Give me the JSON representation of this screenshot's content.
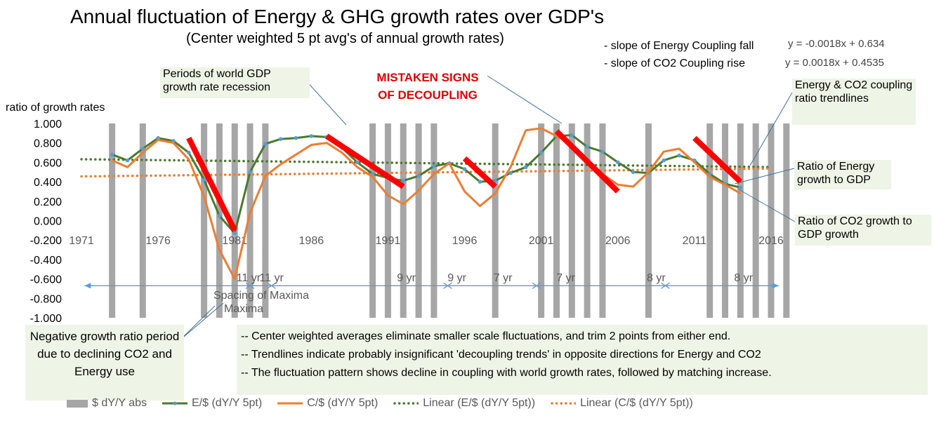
{
  "title": "Annual fluctuation of Energy & GHG growth rates over GDP's",
  "subtitle": "(Center weighted 5 pt avg's of annual growth rates)",
  "equations": [
    {
      "label": "- slope of Energy Coupling fall",
      "eq": "y = -0.0018x + 0.634"
    },
    {
      "label": "- slope of CO2 Coupling rise",
      "eq": "y = 0.0018x + 0.4535"
    }
  ],
  "annotations": {
    "recession": "Periods of world GDP growth rate recession",
    "mistaken": [
      "MISTAKEN SIGNS",
      "OF DECOUPLING"
    ],
    "trendlines": "Energy & CO2 coupling ratio trendlines",
    "ratio_energy": "Ratio of Energy growth to GDP",
    "ratio_co2": "Ratio of CO2 growth to GDP growth",
    "negative": "Negative growth ratio period  due to declining CO2 and Energy use",
    "notes": [
      "-- Center weighted averages eliminate smaller scale fluctuations, and trim 2 points from either end.",
      "-- Trendlines indicate probably insignificant 'decoupling trends' in opposite directions for Energy and CO2",
      "-- The fluctuation pattern shows decline in coupling with world growth rates, followed by matching increase."
    ]
  },
  "chart_data": {
    "type": "line",
    "ylabel": "ratio of growth rates",
    "ylim": [
      -1.0,
      1.0
    ],
    "y_ticks": [
      "1.000",
      "0.800",
      "0.600",
      "0.400",
      "0.200",
      "0.000",
      "-0.200",
      "-0.400",
      "-0.600",
      "-0.800",
      "-1.000"
    ],
    "x_ticks": [
      "1971",
      "1976",
      "1981",
      "1986",
      "1991",
      "1996",
      "2001",
      "2006",
      "2011",
      "2016"
    ],
    "xlim": [
      1971,
      2016
    ],
    "recession_years": [
      1973,
      1975,
      1979,
      1980,
      1981,
      1982,
      1983,
      1990,
      1991,
      1992,
      1993,
      1994,
      1998,
      2001,
      2002,
      2003,
      2004,
      2005,
      2008,
      2012,
      2013,
      2014,
      2015,
      2016,
      2017
    ],
    "series": [
      {
        "name": "E/$ (dY/Y 5pt)",
        "color": "#4a7a2e",
        "x": [
          1973,
          1974,
          1975,
          1976,
          1977,
          1978,
          1979,
          1980,
          1981,
          1982,
          1983,
          1984,
          1985,
          1986,
          1987,
          1988,
          1989,
          1990,
          1991,
          1992,
          1993,
          1994,
          1995,
          1996,
          1997,
          1998,
          1999,
          2000,
          2001,
          2002,
          2003,
          2004,
          2005,
          2006,
          2007,
          2008,
          2009,
          2010,
          2011,
          2012,
          2013,
          2014
        ],
        "values": [
          0.68,
          0.62,
          0.74,
          0.85,
          0.82,
          0.7,
          0.42,
          0.05,
          -0.13,
          0.5,
          0.79,
          0.84,
          0.85,
          0.87,
          0.86,
          0.75,
          0.6,
          0.48,
          0.44,
          0.41,
          0.46,
          0.56,
          0.59,
          0.53,
          0.4,
          0.41,
          0.49,
          0.55,
          0.7,
          0.87,
          0.88,
          0.76,
          0.71,
          0.6,
          0.5,
          0.49,
          0.62,
          0.67,
          0.62,
          0.48,
          0.38,
          0.34
        ]
      },
      {
        "name": "C/$ (dY/Y 5pt)",
        "color": "#ed7d31",
        "x": [
          1973,
          1974,
          1975,
          1976,
          1977,
          1978,
          1979,
          1980,
          1981,
          1982,
          1983,
          1984,
          1985,
          1986,
          1987,
          1988,
          1989,
          1990,
          1991,
          1992,
          1993,
          1994,
          1995,
          1996,
          1997,
          1998,
          1999,
          2000,
          2001,
          2002,
          2003,
          2004,
          2005,
          2006,
          2007,
          2008,
          2009,
          2010,
          2011,
          2012,
          2013,
          2014
        ],
        "values": [
          0.62,
          0.55,
          0.7,
          0.83,
          0.8,
          0.63,
          0.25,
          -0.3,
          -0.6,
          0.08,
          0.46,
          0.58,
          0.68,
          0.78,
          0.8,
          0.7,
          0.55,
          0.45,
          0.26,
          0.17,
          0.31,
          0.48,
          0.59,
          0.3,
          0.15,
          0.28,
          0.55,
          0.93,
          0.95,
          0.87,
          0.78,
          0.62,
          0.48,
          0.37,
          0.35,
          0.5,
          0.71,
          0.74,
          0.6,
          0.45,
          0.37,
          0.28
        ]
      },
      {
        "name": "Linear (E/$ (dY/Y 5pt))",
        "color": "#4a7a2e",
        "dash": true,
        "x": [
          1971,
          2016
        ],
        "values": [
          0.632,
          0.551
        ]
      },
      {
        "name": "Linear (C/$ (dY/Y 5pt))",
        "color": "#ed7d31",
        "dash": true,
        "x": [
          1971,
          2016
        ],
        "values": [
          0.455,
          0.536
        ]
      }
    ],
    "legend": [
      "$ dY/Y abs",
      "E/$ (dY/Y 5pt)",
      "C/$ (dY/Y 5pt)",
      "Linear (E/$ (dY/Y 5pt))",
      "Linear (C/$ (dY/Y 5pt))"
    ],
    "decoupling_segments": [
      [
        1978,
        0.85,
        1981,
        -0.1
      ],
      [
        1987,
        0.87,
        1992,
        0.35
      ],
      [
        1996,
        0.64,
        1998,
        0.35
      ],
      [
        2002,
        0.92,
        2006,
        0.3
      ],
      [
        2011,
        0.85,
        2014,
        0.4
      ]
    ],
    "spacing_labels": [
      {
        "text": "11 yr",
        "year": 1981.9,
        "y": -0.58
      },
      {
        "text": "11 yr",
        "year": 1983.4,
        "y": -0.58
      },
      {
        "text": "9 yr",
        "year": 1992.2,
        "y": -0.58
      },
      {
        "text": "9 yr",
        "year": 1995.5,
        "y": -0.58
      },
      {
        "text": "7 yr",
        "year": 1998.5,
        "y": -0.58
      },
      {
        "text": "7 yr",
        "year": 2002.6,
        "y": -0.58
      },
      {
        "text": "8 yr",
        "year": 2008.5,
        "y": -0.58
      },
      {
        "text": "8 yr",
        "year": 2014.2,
        "y": -0.58
      }
    ],
    "spacing_caption": "Spacing of Maxima",
    "spacing_arrow": {
      "from": 1971.2,
      "to": 2016.5,
      "y": -0.67,
      "ticks": [
        1982.0,
        1983.4,
        1994.9,
        2000.7,
        2009.1
      ]
    }
  }
}
